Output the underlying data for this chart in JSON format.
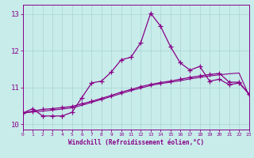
{
  "xlabel": "Windchill (Refroidissement éolien,°C)",
  "background_color": "#c8ecea",
  "line_color": "#880088",
  "grid_color": "#a8d4d2",
  "xlim": [
    0,
    23
  ],
  "ylim": [
    9.85,
    13.25
  ],
  "xticks": [
    0,
    1,
    2,
    3,
    4,
    5,
    6,
    7,
    8,
    9,
    10,
    11,
    12,
    13,
    14,
    15,
    16,
    17,
    18,
    19,
    20,
    21,
    22,
    23
  ],
  "yticks": [
    10,
    11,
    12,
    13
  ],
  "s1_x": [
    0,
    1,
    2,
    3,
    4,
    5,
    6,
    7,
    8,
    9,
    10,
    11,
    12,
    13,
    14,
    15,
    16,
    17,
    18,
    19,
    20,
    21,
    22,
    23
  ],
  "s1_y": [
    10.3,
    10.42,
    10.22,
    10.22,
    10.22,
    10.32,
    10.72,
    11.12,
    11.17,
    11.42,
    11.75,
    11.82,
    12.22,
    13.02,
    12.67,
    12.12,
    11.67,
    11.47,
    11.57,
    11.17,
    11.22,
    11.07,
    11.12,
    10.82
  ],
  "s2_x": [
    0,
    1,
    2,
    3,
    4,
    5,
    6,
    7,
    8,
    9,
    10,
    11,
    12,
    13,
    14,
    15,
    16,
    17,
    18,
    19,
    20,
    21,
    22,
    23
  ],
  "s2_y": [
    10.3,
    10.35,
    10.4,
    10.42,
    10.45,
    10.48,
    10.55,
    10.62,
    10.7,
    10.78,
    10.87,
    10.94,
    11.02,
    11.08,
    11.13,
    11.17,
    11.22,
    11.27,
    11.31,
    11.35,
    11.38,
    11.14,
    11.14,
    10.82
  ],
  "s3_x": [
    0,
    1,
    2,
    3,
    4,
    5,
    6,
    7,
    8,
    9,
    10,
    11,
    12,
    13,
    14,
    15,
    16,
    17,
    18,
    19,
    20,
    21,
    22,
    23
  ],
  "s3_y": [
    10.3,
    10.33,
    10.35,
    10.38,
    10.41,
    10.44,
    10.51,
    10.59,
    10.67,
    10.75,
    10.83,
    10.91,
    10.98,
    11.05,
    11.1,
    11.14,
    11.18,
    11.23,
    11.27,
    11.31,
    11.34,
    11.37,
    11.39,
    10.78
  ]
}
